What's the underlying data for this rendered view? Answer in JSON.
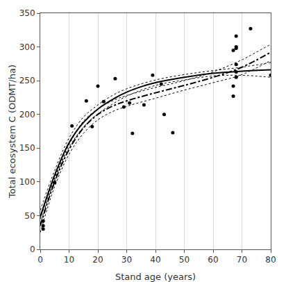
{
  "chart_data": {
    "type": "scatter",
    "x_label": "Stand age (years)",
    "y_label": "Total ecosystem C (ODMT/ha)",
    "xlim": [
      0,
      80
    ],
    "xticks": [
      0,
      10,
      20,
      30,
      40,
      50,
      60,
      70,
      80
    ],
    "ylim": [
      0,
      350
    ],
    "yticks": [
      0,
      50,
      100,
      150,
      200,
      250,
      300,
      350
    ],
    "grid": "x",
    "series": [
      {
        "type": "scatter",
        "marker": "circle",
        "color": "#000000",
        "x": [
          1,
          1,
          1,
          5,
          11,
          16,
          18,
          20,
          22,
          26,
          29,
          31,
          32,
          36,
          39,
          42,
          43,
          46,
          67,
          67,
          67,
          68,
          68,
          68,
          68,
          68,
          68,
          73,
          80
        ],
        "values": [
          30,
          35,
          42,
          99,
          183,
          220,
          182,
          242,
          219,
          253,
          211,
          217,
          172,
          214,
          258,
          245,
          200,
          173,
          295,
          242,
          227,
          300,
          316,
          263,
          274,
          255,
          298,
          327,
          258
        ]
      },
      {
        "type": "line",
        "line_style": "solid",
        "color": "#000000",
        "x": [
          0,
          5,
          10,
          15,
          20,
          25,
          30,
          35,
          40,
          50,
          60,
          70,
          80
        ],
        "values": [
          48,
          110,
          158,
          188,
          208,
          222,
          233,
          241,
          247,
          255,
          261,
          264,
          266
        ]
      },
      {
        "type": "line",
        "line_style": "dashdot",
        "color": "#000000",
        "x": [
          0,
          5,
          10,
          15,
          20,
          25,
          30,
          40,
          50,
          60,
          70,
          80
        ],
        "values": [
          35,
          100,
          148,
          180,
          200,
          212,
          220,
          232,
          243,
          255,
          270,
          292
        ]
      },
      {
        "type": "line",
        "line_style": "dot",
        "color": "#000000",
        "x": [
          0,
          5,
          10,
          15,
          20,
          25,
          30,
          40,
          50,
          60,
          70,
          80
        ],
        "values": [
          58,
          117,
          165,
          196,
          214,
          228,
          238,
          251,
          259,
          265,
          270,
          277
        ]
      },
      {
        "type": "line",
        "line_style": "dot",
        "color": "#000000",
        "x": [
          0,
          5,
          10,
          15,
          20,
          25,
          30,
          40,
          50,
          60,
          70,
          80
        ],
        "values": [
          38,
          103,
          151,
          181,
          201,
          215,
          227,
          243,
          251,
          257,
          258,
          255
        ]
      },
      {
        "type": "line",
        "line_style": "dot",
        "color": "#000000",
        "x": [
          0,
          5,
          10,
          15,
          20,
          25,
          30,
          40,
          50,
          60,
          70,
          80
        ],
        "values": [
          45,
          106,
          155,
          190,
          208,
          220,
          228,
          240,
          250,
          263,
          281,
          304
        ]
      },
      {
        "type": "line",
        "line_style": "dot",
        "color": "#000000",
        "x": [
          0,
          5,
          10,
          15,
          20,
          25,
          30,
          40,
          50,
          60,
          70,
          80
        ],
        "values": [
          25,
          93,
          141,
          172,
          192,
          204,
          212,
          224,
          236,
          247,
          259,
          280
        ]
      }
    ]
  }
}
